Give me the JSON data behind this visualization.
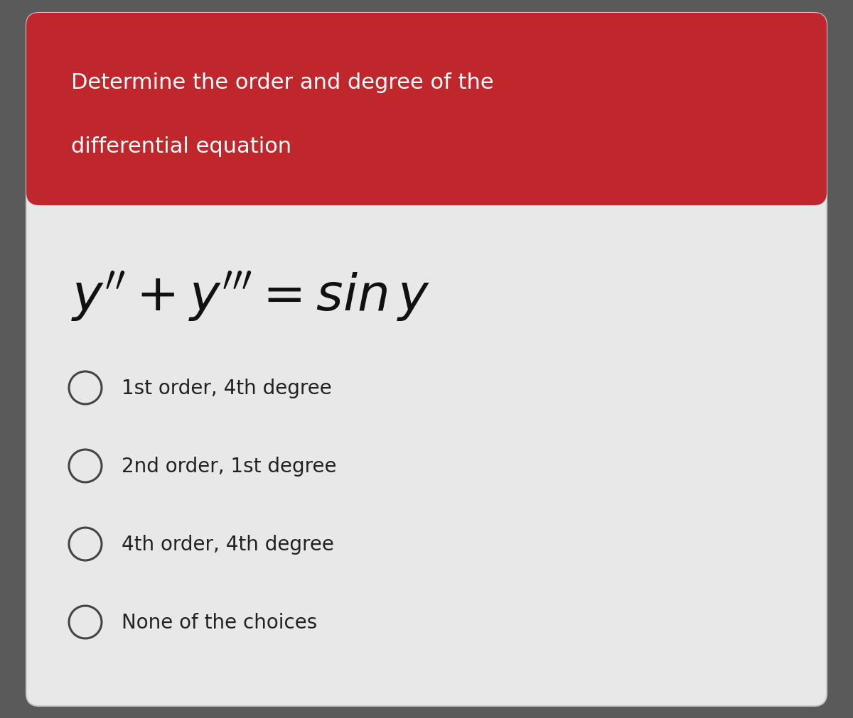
{
  "title_line1": "Determine the order and degree of the",
  "title_line2": "differential equation",
  "header_bg_color": "#c0272d",
  "header_text_color": "#ffffff",
  "card_bg_color": "#e8e8e8",
  "outer_bg_color": "#5a5a5a",
  "choices": [
    "1st order, 4th degree",
    "2nd order, 1st degree",
    "4th order, 4th degree",
    "None of the choices"
  ],
  "choice_text_color": "#222222",
  "circle_color": "#444444",
  "equation_color": "#111111",
  "title_fontsize": 22,
  "choice_fontsize": 20,
  "equation_fontsize": 52
}
